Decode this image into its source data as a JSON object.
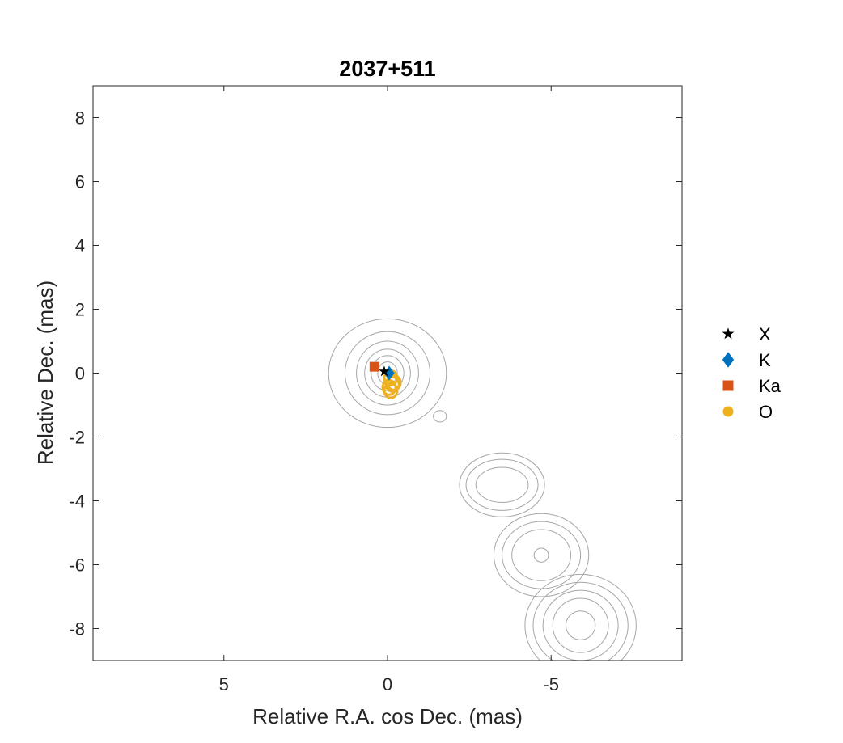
{
  "chart_data": {
    "type": "scatter",
    "title": "2037+511",
    "xlabel": "Relative R.A. cos Dec. (mas)",
    "ylabel": "Relative Dec. (mas)",
    "xlim": [
      9,
      -9
    ],
    "ylim": [
      -9,
      9
    ],
    "x_ticks": [
      5,
      0,
      -5
    ],
    "x_tick_labels": [
      "5",
      "0",
      "-5"
    ],
    "y_ticks": [
      8,
      6,
      4,
      2,
      0,
      -2,
      -4,
      -6,
      -8
    ],
    "y_tick_labels": [
      "8",
      "6",
      "4",
      "2",
      "0",
      "-2",
      "-4",
      "-6",
      "-8"
    ],
    "grid": false,
    "legend_position": "outside-right",
    "contour_color": "#a6a6a6",
    "contours": [
      {
        "x": 0.0,
        "y": 0.0,
        "rx": [
          0.3,
          0.5,
          0.7,
          0.95,
          1.3,
          1.8
        ],
        "ry": [
          0.35,
          0.55,
          0.75,
          1.0,
          1.3,
          1.7
        ]
      },
      {
        "x": -1.6,
        "y": -1.35,
        "rx": [
          0.2
        ],
        "ry": [
          0.18
        ]
      },
      {
        "x": -3.5,
        "y": -3.5,
        "rx": [
          0.8,
          1.1,
          1.3
        ],
        "ry": [
          0.55,
          0.8,
          1.0
        ]
      },
      {
        "x": -4.7,
        "y": -5.7,
        "rx": [
          0.22,
          0.9,
          1.2,
          1.45
        ],
        "ry": [
          0.22,
          0.8,
          1.05,
          1.3
        ]
      },
      {
        "x": -5.9,
        "y": -7.9,
        "rx": [
          0.45,
          0.85,
          1.15,
          1.45,
          1.7
        ],
        "ry": [
          0.45,
          0.85,
          1.1,
          1.35,
          1.6
        ]
      }
    ],
    "series": [
      {
        "name": "X",
        "marker": "star",
        "color": "#000000",
        "points": [
          [
            0.1,
            0.05
          ]
        ]
      },
      {
        "name": "K",
        "marker": "diamond",
        "color": "#0072BD",
        "points": [
          [
            -0.05,
            0.0
          ]
        ]
      },
      {
        "name": "Ka",
        "marker": "square",
        "color": "#D95319",
        "points": [
          [
            0.4,
            0.2
          ]
        ]
      },
      {
        "name": "O",
        "marker": "circle",
        "color": "#EDB120",
        "points": [
          [
            -0.1,
            -0.15
          ],
          [
            -0.15,
            -0.35
          ],
          [
            -0.1,
            -0.55
          ],
          [
            -0.2,
            -0.3
          ],
          [
            -0.05,
            -0.45
          ]
        ]
      }
    ]
  }
}
